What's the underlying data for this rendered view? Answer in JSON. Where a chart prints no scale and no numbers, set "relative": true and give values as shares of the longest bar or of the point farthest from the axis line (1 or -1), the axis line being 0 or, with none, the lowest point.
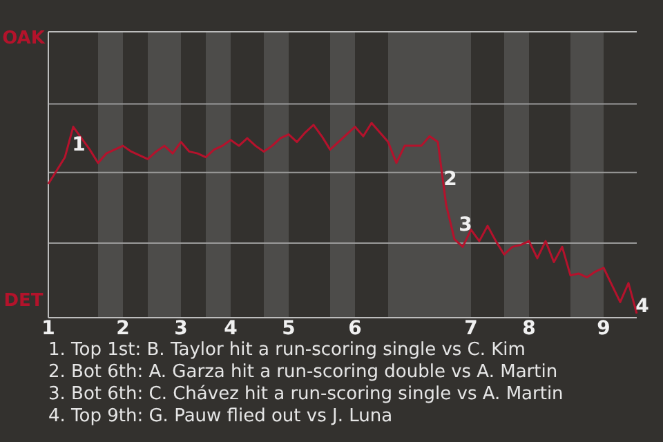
{
  "chart_data": {
    "type": "line",
    "relative": true,
    "categories": [
      "1",
      null,
      null,
      null,
      null,
      null,
      null,
      null,
      null,
      "2",
      null,
      null,
      null,
      null,
      null,
      null,
      "3",
      null,
      null,
      null,
      null,
      null,
      "4",
      null,
      null,
      null,
      null,
      null,
      null,
      "5",
      null,
      null,
      null,
      null,
      null,
      null,
      null,
      "6",
      null,
      null,
      null,
      null,
      null,
      null,
      null,
      null,
      null,
      null,
      null,
      null,
      null,
      "7",
      null,
      null,
      null,
      null,
      null,
      null,
      "8",
      null,
      null,
      null,
      null,
      null,
      null,
      null,
      null,
      "9",
      null,
      null,
      null,
      null
    ],
    "series": [
      {
        "color": "#b5122c",
        "values": [
          0.68,
          0.75,
          0.82,
          0.98,
          0.92,
          0.86,
          0.79,
          0.84,
          0.86,
          0.88,
          0.85,
          0.83,
          0.81,
          0.85,
          0.88,
          0.84,
          0.9,
          0.85,
          0.84,
          0.82,
          0.86,
          0.88,
          0.91,
          0.88,
          0.92,
          0.88,
          0.85,
          0.88,
          0.92,
          0.94,
          0.9,
          0.95,
          0.99,
          0.93,
          0.86,
          0.9,
          0.94,
          0.98,
          0.93,
          1,
          0.95,
          0.9,
          0.79,
          0.88,
          0.88,
          0.88,
          0.93,
          0.9,
          0.57,
          0.39,
          0.35,
          0.44,
          0.38,
          0.46,
          0.38,
          0.31,
          0.35,
          0.36,
          0.38,
          0.29,
          0.38,
          0.27,
          0.35,
          0.2,
          0.21,
          0.19,
          0.22,
          0.24,
          0.15,
          0.06,
          0.16,
          0
        ]
      }
    ],
    "marker": "none",
    "line_style": "solid",
    "ref_lines": [
      {
        "axis": "y",
        "value": 0.37,
        "color": "#9a9a9a"
      },
      {
        "axis": "y",
        "value": 0.74,
        "color": "#9a9a9a"
      },
      {
        "axis": "y",
        "value": 1.1,
        "color": "#9a9a9a"
      }
    ],
    "annotations": [
      "OAK",
      "DET",
      "1",
      "2",
      "3",
      "4",
      "1. Top 1st: B. Taylor hit a run-scoring single vs C. Kim",
      "2. Bot 6th: A. Garza hit a run-scoring double vs A. Martin",
      "3. Bot 6th: C. Chávez hit a run-scoring single vs A. Martin",
      "4. Top 9th: G. Pauw flied out vs J. Luna"
    ]
  }
}
